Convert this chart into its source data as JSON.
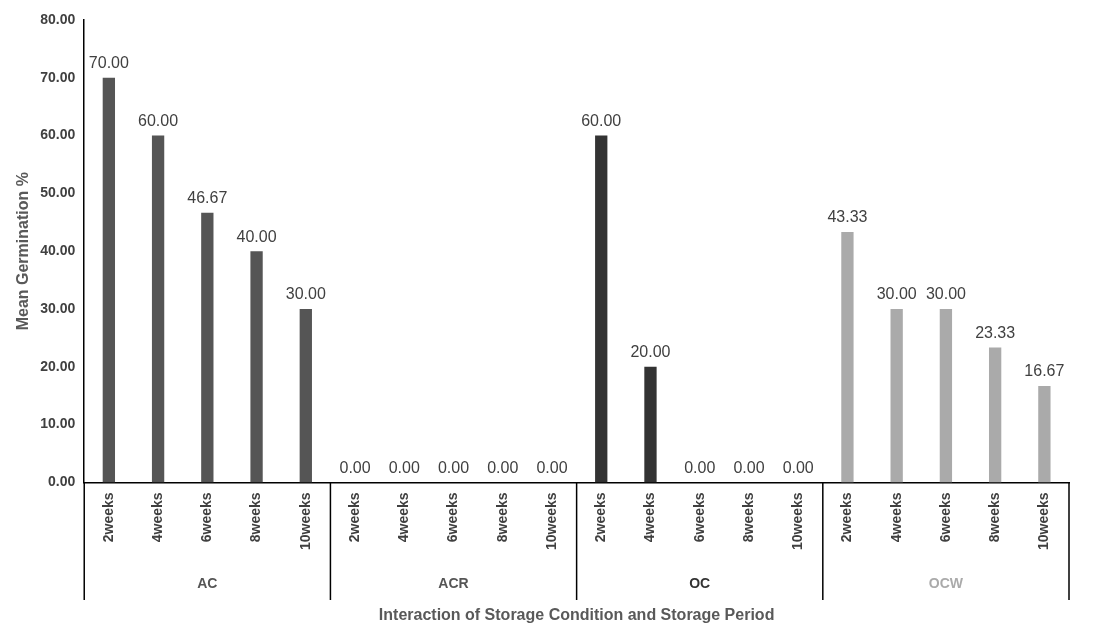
{
  "chart_data": {
    "type": "bar",
    "xlabel": "Interaction of Storage Condition and Storage Period",
    "ylabel": "Mean Germination %",
    "categories": [
      "2weeks",
      "4weeks",
      "6weeks",
      "8weeks",
      "10weeks",
      "2weeks",
      "4weeks",
      "6weeks",
      "8weeks",
      "10weeks",
      "2weeks",
      "4weeks",
      "6weeks",
      "8weeks",
      "10weeks",
      "2weeks",
      "4weeks",
      "6weeks",
      "8weeks",
      "10weeks"
    ],
    "series": [
      {
        "name": "AC",
        "color": "#555555",
        "values": [
          70,
          60,
          46.67,
          40,
          30,
          null,
          null,
          null,
          null,
          null,
          null,
          null,
          null,
          null,
          null,
          null,
          null,
          null,
          null,
          null
        ],
        "value_labels": [
          "70.00",
          "60.00",
          "46.67",
          "40.00",
          "30.00",
          null,
          null,
          null,
          null,
          null,
          null,
          null,
          null,
          null,
          null,
          null,
          null,
          null,
          null,
          null
        ]
      },
      {
        "name": "ACR",
        "color": "#555555",
        "values": [
          null,
          null,
          null,
          null,
          null,
          0,
          0,
          0,
          0,
          0,
          null,
          null,
          null,
          null,
          null,
          null,
          null,
          null,
          null,
          null
        ],
        "value_labels": [
          null,
          null,
          null,
          null,
          null,
          "0.00",
          "0.00",
          "0.00",
          "0.00",
          "0.00",
          null,
          null,
          null,
          null,
          null,
          null,
          null,
          null,
          null,
          null
        ]
      },
      {
        "name": "OC",
        "color": "#333333",
        "values": [
          null,
          null,
          null,
          null,
          null,
          null,
          null,
          null,
          null,
          null,
          60,
          20,
          0,
          0,
          0,
          null,
          null,
          null,
          null,
          null
        ],
        "value_labels": [
          null,
          null,
          null,
          null,
          null,
          null,
          null,
          null,
          null,
          null,
          "60.00",
          "20.00",
          "0.00",
          "0.00",
          "0.00",
          null,
          null,
          null,
          null,
          null
        ]
      },
      {
        "name": "OCW",
        "color": "#aaaaaa",
        "values": [
          null,
          null,
          null,
          null,
          null,
          null,
          null,
          null,
          null,
          null,
          null,
          null,
          null,
          null,
          null,
          43.33,
          30,
          30,
          23.33,
          16.67
        ],
        "value_labels": [
          null,
          null,
          null,
          null,
          null,
          null,
          null,
          null,
          null,
          null,
          null,
          null,
          null,
          null,
          null,
          "43.33",
          "30.00",
          "30.00",
          "23.33",
          "16.67"
        ]
      }
    ],
    "ylim": [
      0,
      80
    ],
    "yticks": [
      {
        "value": 0,
        "label": "0.00"
      },
      {
        "value": 10,
        "label": "10.00"
      },
      {
        "value": 20,
        "label": "20.00"
      },
      {
        "value": 30,
        "label": "30.00"
      },
      {
        "value": 40,
        "label": "40.00"
      },
      {
        "value": 50,
        "label": "50.00"
      },
      {
        "value": 60,
        "label": "60.00"
      },
      {
        "value": 70,
        "label": "70.00"
      },
      {
        "value": 80,
        "label": "80.00"
      }
    ],
    "grid": false,
    "legend": false
  }
}
